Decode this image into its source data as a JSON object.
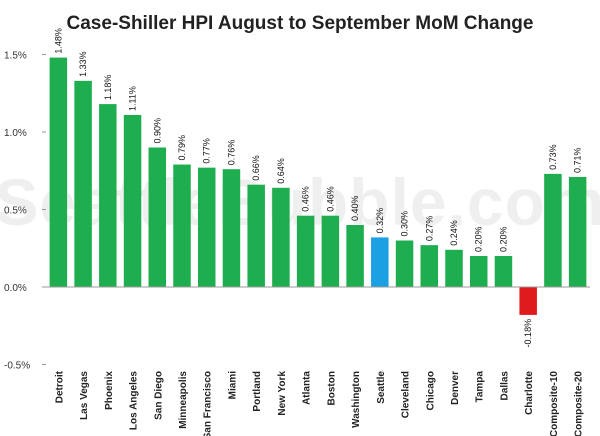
{
  "watermark": "SeattleBubble.com",
  "chart_data": {
    "type": "bar",
    "title": "Case-Shiller HPI August to September MoM Change",
    "xlabel": "",
    "ylabel": "",
    "ylim": [
      -0.5,
      1.6
    ],
    "yticks": [
      -0.5,
      0.0,
      0.5,
      1.0,
      1.5
    ],
    "ytick_labels": [
      "-0.5%",
      "0.0%",
      "0.5%",
      "1.0%",
      "1.5%"
    ],
    "grid": false,
    "legend": "none",
    "categories": [
      "Detroit",
      "Las Vegas",
      "Phoenix",
      "Los Angeles",
      "San Diego",
      "Minneapolis",
      "San Francisco",
      "Miami",
      "Portland",
      "New York",
      "Atlanta",
      "Boston",
      "Washington",
      "Seattle",
      "Cleveland",
      "Chicago",
      "Denver",
      "Tampa",
      "Dallas",
      "Charlotte",
      "Composite-10",
      "Composite-20"
    ],
    "values": [
      1.48,
      1.33,
      1.18,
      1.11,
      0.9,
      0.79,
      0.77,
      0.76,
      0.66,
      0.64,
      0.46,
      0.46,
      0.4,
      0.32,
      0.3,
      0.27,
      0.24,
      0.2,
      0.2,
      -0.18,
      0.73,
      0.71
    ],
    "value_labels": [
      "1.48%",
      "1.33%",
      "1.18%",
      "1.11%",
      "0.90%",
      "0.79%",
      "0.77%",
      "0.76%",
      "0.66%",
      "0.64%",
      "0.46%",
      "0.46%",
      "0.40%",
      "0.32%",
      "0.30%",
      "0.27%",
      "0.24%",
      "0.20%",
      "0.20%",
      "-0.18%",
      "0.73%",
      "0.71%"
    ],
    "colors": {
      "default": "#1fae4f",
      "highlight": "#1ba0e3",
      "negative": "#e01b1b",
      "axis": "#999999"
    },
    "highlight_category": "Seattle"
  }
}
